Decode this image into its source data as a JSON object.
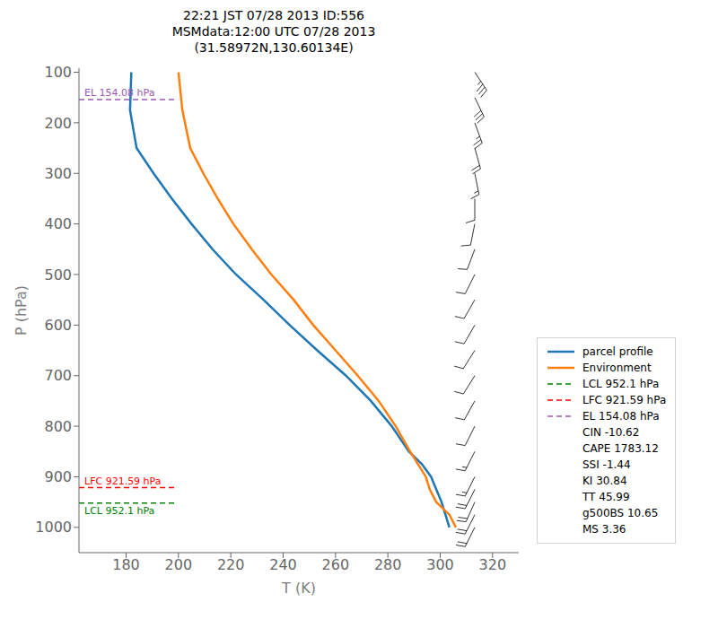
{
  "chart_data": {
    "type": "line",
    "title": "22:21 JST 07/28 2013  ID:556\nMSMdata:12:00 UTC 07/28 2013\n(31.58972N,130.60134E)",
    "xlabel": "T (K)",
    "ylabel": "P (hPa)",
    "xlim": [
      162,
      330
    ],
    "ylim": [
      1050,
      92
    ],
    "xticks": [
      180,
      200,
      220,
      240,
      260,
      280,
      300,
      320
    ],
    "yticks": [
      100,
      200,
      300,
      400,
      500,
      600,
      700,
      800,
      900,
      1000
    ],
    "grid": false,
    "legend": "lower right",
    "series": [
      {
        "name": "parcel profile",
        "color": "#1f77b4",
        "line_style": "solid",
        "x": [
          303.5,
          302.0,
          300.5,
          298.5,
          296.5,
          293.0,
          288.0,
          281.5,
          273.5,
          264.0,
          253.0,
          242.5,
          232.5,
          222.0,
          213.0,
          205.0,
          197.5,
          190.5,
          184.0,
          184.0,
          181.5,
          182.0
        ],
        "values": [
          1000,
          975,
          950,
          925,
          900,
          875,
          850,
          800,
          750,
          700,
          650,
          600,
          550,
          500,
          450,
          400,
          350,
          300,
          250,
          250,
          175,
          100
        ]
      },
      {
        "name": "Environment",
        "color": "#ff7f0e",
        "line_style": "solid",
        "x": [
          306.0,
          303.5,
          298.5,
          296.0,
          294.5,
          291.5,
          288.5,
          283.0,
          276.5,
          268.5,
          260.0,
          251.5,
          244.0,
          235.5,
          228.0,
          221.0,
          215.0,
          209.5,
          204.5,
          204.5,
          201.5,
          200.0
        ],
        "values": [
          1000,
          975,
          950,
          925,
          900,
          875,
          850,
          800,
          750,
          700,
          650,
          600,
          550,
          500,
          450,
          400,
          350,
          300,
          250,
          250,
          175,
          100
        ]
      }
    ],
    "levels": [
      {
        "label": "LCL 952.1 hPa",
        "value": 952.1,
        "color": "green",
        "line_style": "dashed"
      },
      {
        "label": "LFC 921.59 hPa",
        "value": 921.59,
        "color": "red",
        "line_style": "dashed"
      },
      {
        "label": "EL 154.08 hPa",
        "value": 154.08,
        "color": "#9b59b6",
        "line_style": "dashed"
      }
    ],
    "legend_texts": [
      "CIN -10.62",
      "CAPE 1783.12",
      "SSI -1.44",
      "KI 30.84",
      "TT 45.99",
      "g500BS 10.65",
      "MS 3.36"
    ],
    "wind_barbs": {
      "p": [
        100,
        150,
        200,
        250,
        300,
        350,
        400,
        450,
        500,
        550,
        600,
        650,
        700,
        750,
        800,
        850,
        900,
        925,
        950,
        975,
        1000
      ],
      "u": [
        -20,
        -12,
        -8,
        -5,
        -3,
        0,
        2,
        3,
        4,
        4,
        4,
        5,
        5,
        5,
        5,
        6,
        7,
        8,
        8,
        9,
        10
      ],
      "v": [
        30,
        25,
        22,
        18,
        15,
        12,
        10,
        8,
        8,
        7,
        7,
        8,
        8,
        9,
        10,
        12,
        14,
        16,
        18,
        18,
        20
      ]
    }
  }
}
